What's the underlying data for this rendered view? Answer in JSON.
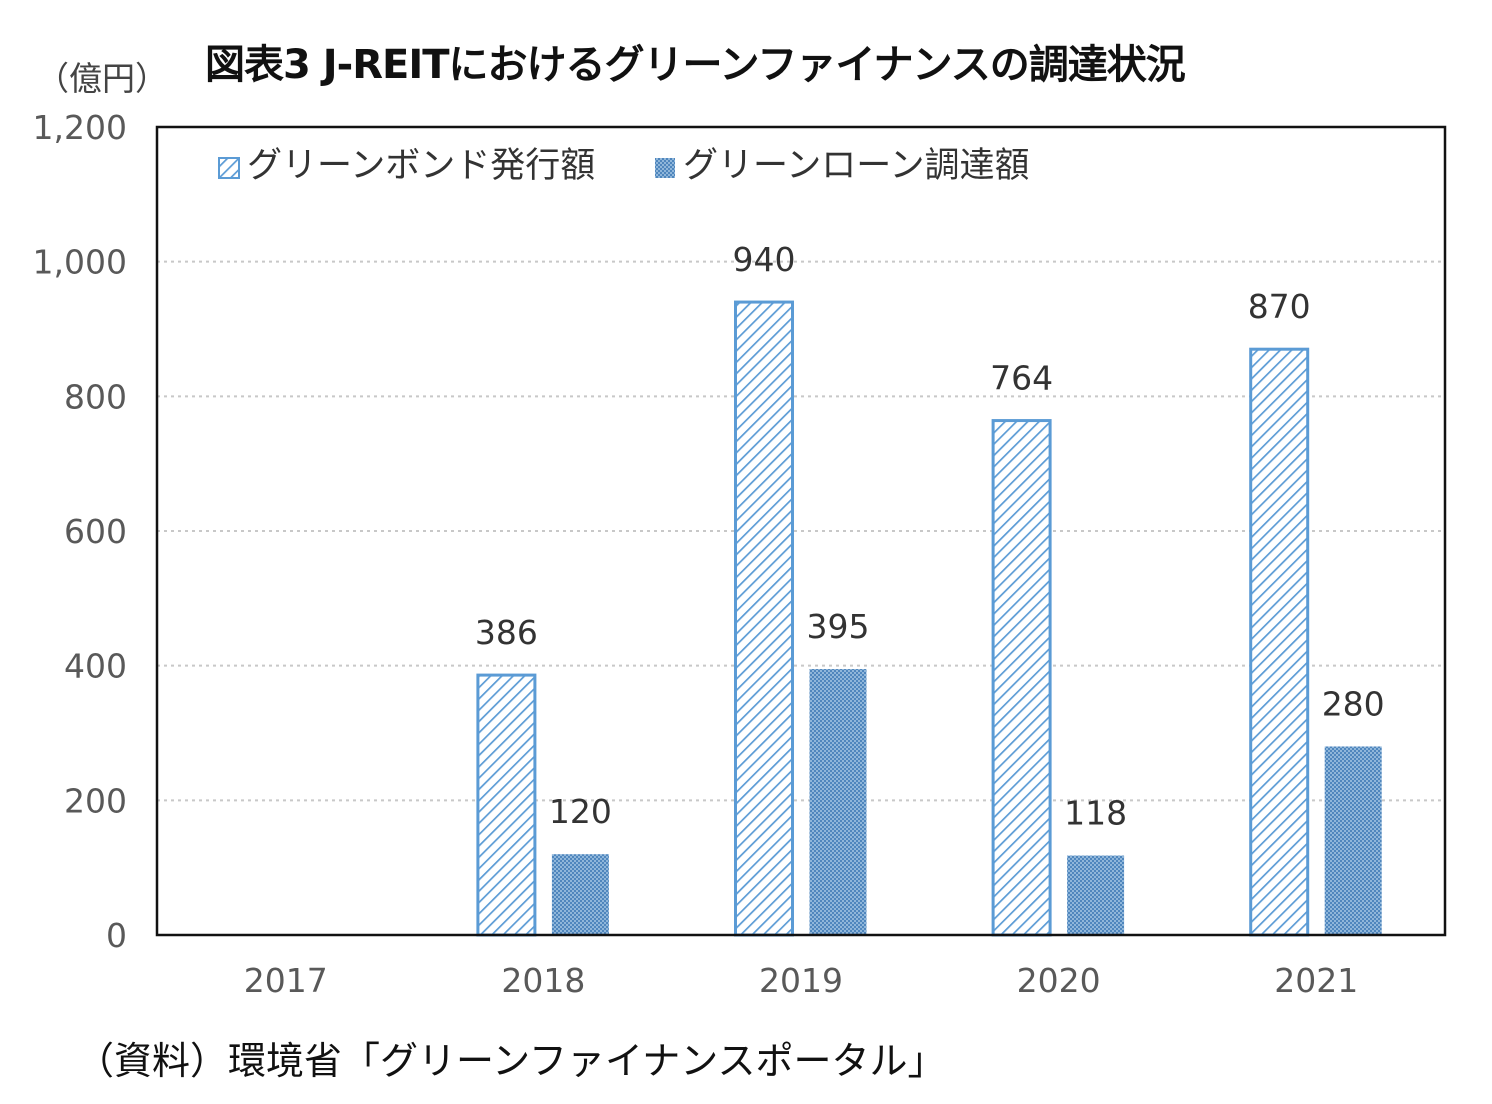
{
  "title": "図表3 J-REITにおけるグリーンファイナンスの調達状況",
  "unit_label": "（億円）",
  "source_note": "（資料）環境省「グリーンファイナンスポータル」",
  "colors": {
    "bar_border": "#5b9bd5",
    "bond_stripe": "#5b9bd5",
    "loan_fill": "#7fa9cf",
    "grid": "#c8c8c8",
    "axis_text": "#595959"
  },
  "chart_data": {
    "type": "bar",
    "categories": [
      "2017",
      "2018",
      "2019",
      "2020",
      "2021"
    ],
    "series": [
      {
        "name": "グリーンボンド発行額",
        "values": [
          0,
          386,
          940,
          764,
          870
        ],
        "labels": [
          "",
          "386",
          "940",
          "764",
          "870"
        ]
      },
      {
        "name": "グリーンローン調達額",
        "values": [
          0,
          120,
          395,
          118,
          280
        ],
        "labels": [
          "",
          "120",
          "395",
          "118",
          "280"
        ]
      }
    ],
    "yticks": [
      "0",
      "200",
      "400",
      "600",
      "800",
      "1,000",
      "1,200"
    ],
    "ylim": [
      0,
      1200
    ],
    "ytick_step": 200,
    "legend_position": "top-left",
    "grid": true
  }
}
